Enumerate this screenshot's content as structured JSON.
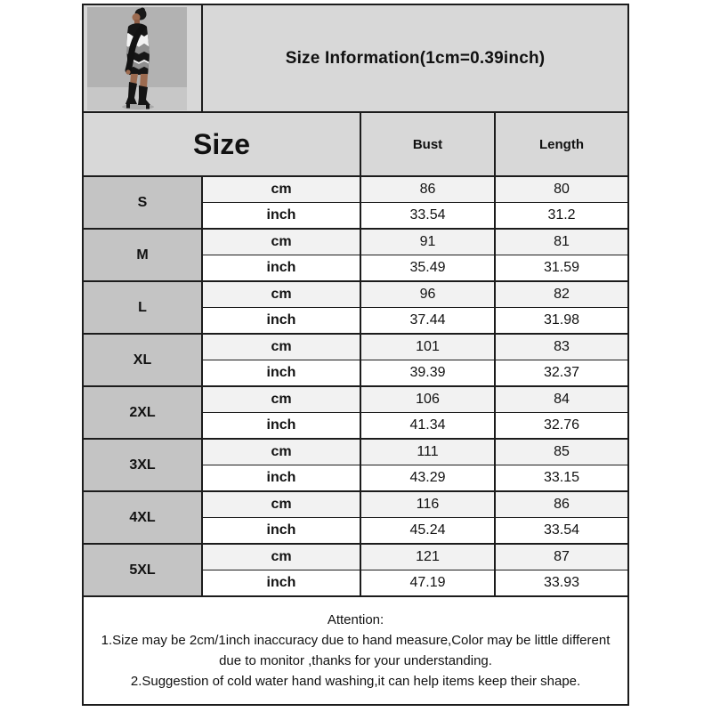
{
  "header": {
    "title": "Size Information(1cm=0.39inch)"
  },
  "product_image": {
    "alt": "model-in-chevron-striped-sweater-dress-with-thigh-high-boots",
    "dress_colors": {
      "black": "#161616",
      "white": "#f2f2f2",
      "gray": "#8f8f8f"
    }
  },
  "table": {
    "size_header": "Size",
    "columns": [
      "Bust",
      "Length"
    ],
    "unit_labels": [
      "cm",
      "inch"
    ],
    "rows": [
      {
        "size": "S",
        "cm": [
          "86",
          "80"
        ],
        "inch": [
          "33.54",
          "31.2"
        ]
      },
      {
        "size": "M",
        "cm": [
          "91",
          "81"
        ],
        "inch": [
          "35.49",
          "31.59"
        ]
      },
      {
        "size": "L",
        "cm": [
          "96",
          "82"
        ],
        "inch": [
          "37.44",
          "31.98"
        ]
      },
      {
        "size": "XL",
        "cm": [
          "101",
          "83"
        ],
        "inch": [
          "39.39",
          "32.37"
        ]
      },
      {
        "size": "2XL",
        "cm": [
          "106",
          "84"
        ],
        "inch": [
          "41.34",
          "32.76"
        ]
      },
      {
        "size": "3XL",
        "cm": [
          "111",
          "85"
        ],
        "inch": [
          "43.29",
          "33.15"
        ]
      },
      {
        "size": "4XL",
        "cm": [
          "116",
          "86"
        ],
        "inch": [
          "45.24",
          "33.54"
        ]
      },
      {
        "size": "5XL",
        "cm": [
          "121",
          "87"
        ],
        "inch": [
          "47.19",
          "33.93"
        ]
      }
    ]
  },
  "attention": {
    "heading": "Attention:",
    "lines": [
      "1.Size may be 2cm/1inch inaccuracy due to hand measure,Color may be little different",
      "due to monitor ,thanks for your understanding.",
      "2.Suggestion of cold water hand washing,it can help items keep their shape."
    ]
  },
  "colors": {
    "header_bg": "#d8d8d8",
    "size_column_bg": "#c4c4c4",
    "cm_row_bg": "#f2f2f2",
    "inch_row_bg": "#ffffff",
    "border": "#1c1c1c",
    "text": "#111111"
  }
}
